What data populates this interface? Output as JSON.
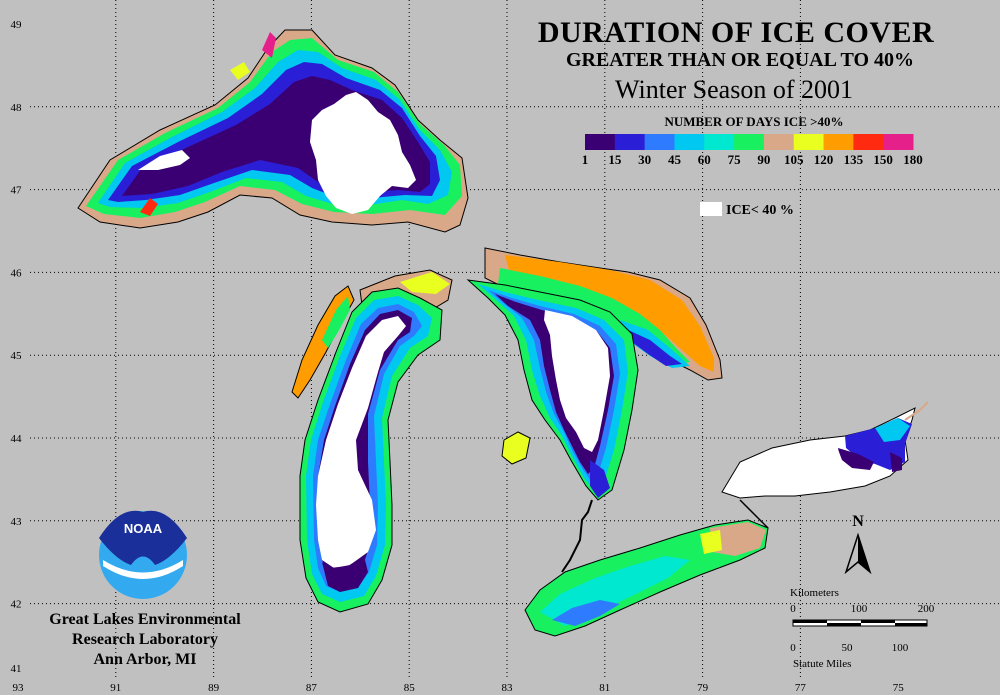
{
  "title": {
    "line1": "DURATION OF ICE COVER",
    "line2": "GREATER THAN OR EQUAL TO 40%",
    "line3": "Winter Season of 2001"
  },
  "legend": {
    "heading": "NUMBER OF DAYS ICE >40%",
    "ticks": [
      "1",
      "15",
      "30",
      "45",
      "60",
      "75",
      "90",
      "105",
      "120",
      "135",
      "150",
      "180"
    ],
    "colors": [
      "#3a0073",
      "#2a1fd6",
      "#2f7bff",
      "#00c8f0",
      "#00e8d0",
      "#18f060",
      "#d9a888",
      "#e8ff20",
      "#ff9c00",
      "#ff2a10",
      "#e6208a"
    ],
    "ice_label": "ICE< 40 %"
  },
  "colors": {
    "background": "#c0c0c0",
    "ice_free": "#ffffff",
    "shore": "#000000",
    "noaa_blue": "#1a2f9a",
    "noaa_light": "#33aaf0"
  },
  "grid": {
    "lon_labels": [
      "93",
      "91",
      "89",
      "87",
      "85",
      "83",
      "81",
      "79",
      "77",
      "75"
    ],
    "lat_labels": [
      "49",
      "48",
      "47",
      "46",
      "45",
      "44",
      "43",
      "42",
      "41"
    ]
  },
  "north_label": "N",
  "scale": {
    "km_title": "Kilometers",
    "km_ticks": [
      "0",
      "100",
      "200"
    ],
    "mi_ticks": [
      "0",
      "50",
      "100"
    ],
    "mi_title": "Statute Miles"
  },
  "logo_text": "NOAA",
  "credits": {
    "line1": "Great Lakes Environmental",
    "line2": "Research Laboratory",
    "line3": "Ann Arbor, MI"
  }
}
